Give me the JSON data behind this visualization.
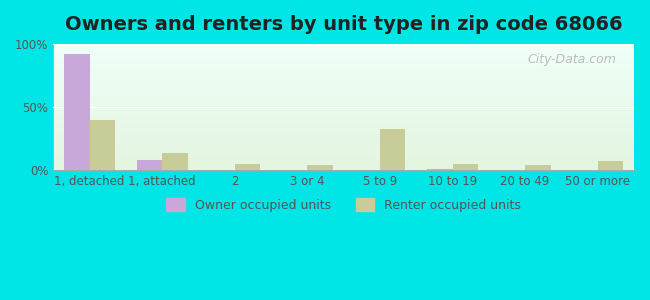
{
  "title": "Owners and renters by unit type in zip code 68066",
  "categories": [
    "1, detached",
    "1, attached",
    "2",
    "3 or 4",
    "5 to 9",
    "10 to 19",
    "20 to 49",
    "50 or more"
  ],
  "owner_values": [
    92,
    8,
    0,
    0,
    0,
    1,
    0,
    0
  ],
  "renter_values": [
    40,
    14,
    5,
    4,
    33,
    5,
    4,
    7
  ],
  "owner_color": "#c8a8d8",
  "renter_color": "#c8cc98",
  "background_outer": "#00e5e5",
  "background_inner_top": "#f0fff8",
  "background_inner_bottom": "#e4f5e0",
  "ylabel_ticks": [
    "0%",
    "50%",
    "100%"
  ],
  "ytick_vals": [
    0,
    50,
    100
  ],
  "ylim": [
    0,
    100
  ],
  "bar_width": 0.35,
  "legend_owner": "Owner occupied units",
  "legend_renter": "Renter occupied units",
  "watermark": "City-Data.com",
  "title_fontsize": 14,
  "tick_fontsize": 8.5,
  "legend_fontsize": 9
}
